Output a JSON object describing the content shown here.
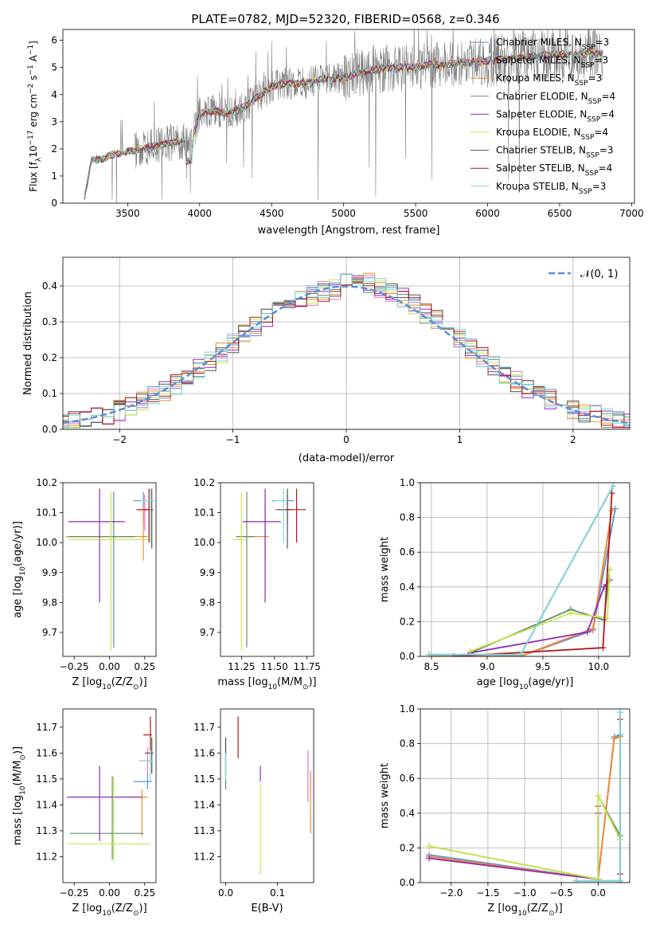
{
  "figure": {
    "title": "PLATE=0782, MJD=52320, FIBERID=0568, z=0.346"
  },
  "palette": {
    "Chabrier MILES": "#5b8fd6",
    "Salpeter MILES": "#e377c2",
    "Kroupa MILES": "#f08a2c",
    "Chabrier ELODIE": "#5e8e6e",
    "Salpeter ELODIE": "#8e2ab5",
    "Kroupa ELODIE": "#c8e64a",
    "Chabrier STELIB": "#555555",
    "Salpeter STELIB": "#b01515",
    "Kroupa STELIB": "#7fd8dc",
    "data": "#808080",
    "normal": "#5b8fd6"
  },
  "chart_data": [
    {
      "id": "spectrum",
      "type": "line",
      "xlabel": "wavelength [Angstrom, rest frame]",
      "ylabel_parts": [
        "Flux [f",
        "λ",
        "10",
        "−17",
        " erg cm",
        "−2",
        " s",
        "−1",
        " A",
        "−1",
        "]"
      ],
      "xlim": [
        3050,
        7020
      ],
      "ylim": [
        0,
        6.4
      ],
      "xticks": [
        3500,
        4000,
        4500,
        5000,
        5500,
        6000,
        6500,
        7000
      ],
      "yticks": [
        0,
        1,
        2,
        3,
        4,
        5,
        6
      ],
      "continuum": {
        "x": [
          3200,
          3250,
          3300,
          3400,
          3500,
          3600,
          3700,
          3800,
          3900,
          3950,
          4000,
          4100,
          4200,
          4300,
          4400,
          4500,
          4600,
          4700,
          4800,
          4900,
          5000,
          5100,
          5200,
          5300,
          5400,
          5500,
          5600,
          5700,
          5800,
          5900,
          6000,
          6100,
          6200,
          6300,
          6400,
          6500,
          6600,
          6700,
          6800
        ],
        "y": [
          0.2,
          1.6,
          1.6,
          1.8,
          1.9,
          2.0,
          2.1,
          2.2,
          2.3,
          2.4,
          3.3,
          3.4,
          3.3,
          3.5,
          3.9,
          4.3,
          4.4,
          4.4,
          4.5,
          4.6,
          4.6,
          4.8,
          4.9,
          5.0,
          5.0,
          5.0,
          5.1,
          5.1,
          5.15,
          5.2,
          5.25,
          5.3,
          5.35,
          5.4,
          5.45,
          5.5,
          5.5,
          5.5,
          5.5
        ]
      },
      "legend": [
        {
          "name": "Chabrier MILES, N",
          "sub": "SSP",
          "tail": "=3"
        },
        {
          "name": "Salpeter MILES, N",
          "sub": "SSP",
          "tail": "=3"
        },
        {
          "name": "Kroupa MILES, N",
          "sub": "SSP",
          "tail": "=3"
        },
        {
          "name": "Chabrier ELODIE, N",
          "sub": "SSP",
          "tail": "=4"
        },
        {
          "name": "Salpeter ELODIE, N",
          "sub": "SSP",
          "tail": "=4"
        },
        {
          "name": "Kroupa ELODIE, N",
          "sub": "SSP",
          "tail": "=4"
        },
        {
          "name": "Chabrier STELIB, N",
          "sub": "SSP",
          "tail": "=3"
        },
        {
          "name": "Salpeter STELIB, N",
          "sub": "SSP",
          "tail": "=4"
        },
        {
          "name": "Kroupa STELIB, N",
          "sub": "SSP",
          "tail": "=3"
        }
      ]
    },
    {
      "id": "residuals",
      "type": "step",
      "xlabel": "(data-model)/error",
      "ylabel": "Normed distribution",
      "xlim": [
        -2.5,
        2.5
      ],
      "ylim": [
        0,
        0.48
      ],
      "xticks": [
        -2,
        -1,
        0,
        1,
        2
      ],
      "yticks": [
        0.0,
        0.1,
        0.2,
        0.3,
        0.4
      ],
      "grid": true,
      "legend_label": "𝒩(0, 1)",
      "legend_position": "top-right"
    },
    {
      "id": "age_vs_Z",
      "type": "errorbar",
      "xlabel_parts": [
        "Z [log",
        "10",
        "(Z/Z",
        "⊙",
        ")]"
      ],
      "ylabel_parts": [
        "age  [log",
        "10",
        "(age/yr)]"
      ],
      "xlim": [
        -0.33,
        0.33
      ],
      "ylim": [
        9.62,
        10.2
      ],
      "xticks": [
        -0.25,
        0.0,
        0.25
      ],
      "yticks": [
        9.7,
        9.8,
        9.9,
        10.0,
        10.1,
        10.2
      ],
      "points": [
        {
          "model": "Chabrier MILES",
          "x": 0.24,
          "xerr": [
            0.07,
            0.07
          ],
          "y": 10.14,
          "yerr": [
            0.08,
            0.03
          ]
        },
        {
          "model": "Salpeter MILES",
          "x": 0.25,
          "xerr": [
            0.05,
            0.05
          ],
          "y": 10.11,
          "yerr": [
            0.07,
            0.05
          ]
        },
        {
          "model": "Kroupa MILES",
          "x": 0.24,
          "xerr": [
            0.55,
            0.03
          ],
          "y": 10.02,
          "yerr": [
            0.08,
            0.1
          ]
        },
        {
          "model": "Chabrier ELODIE",
          "x": 0.03,
          "xerr": [
            0.32,
            0.15
          ],
          "y": 10.02,
          "yerr": [
            0.37,
            0.15
          ]
        },
        {
          "model": "Salpeter ELODIE",
          "x": -0.07,
          "xerr": [
            0.22,
            0.18
          ],
          "y": 10.07,
          "yerr": [
            0.27,
            0.11
          ]
        },
        {
          "model": "Kroupa ELODIE",
          "x": 0.01,
          "xerr": [
            0.3,
            0.27
          ],
          "y": 10.01,
          "yerr": [
            0.37,
            0.16
          ]
        },
        {
          "model": "Chabrier STELIB",
          "x": 0.3,
          "xerr": [
            0.06,
            0.01
          ],
          "y": 10.11,
          "yerr": [
            0.13,
            0.07
          ]
        },
        {
          "model": "Salpeter STELIB",
          "x": 0.28,
          "xerr": [
            0.09,
            0.02
          ],
          "y": 10.11,
          "yerr": [
            0.11,
            0.07
          ]
        },
        {
          "model": "Kroupa STELIB",
          "x": 0.29,
          "xerr": [
            0.07,
            0.03
          ],
          "y": 10.14,
          "yerr": [
            0.14,
            0.04
          ]
        }
      ]
    },
    {
      "id": "age_vs_mass",
      "type": "errorbar",
      "xlabel_parts": [
        "mass [log",
        "10",
        "(M/M",
        "⊙",
        ")]"
      ],
      "xlim": [
        11.09,
        11.8
      ],
      "ylim": [
        9.62,
        10.2
      ],
      "xticks": [
        11.25,
        11.5,
        11.75
      ],
      "yticks": [
        9.7,
        9.8,
        9.9,
        10.0,
        10.1,
        10.2
      ],
      "points": [
        {
          "model": "Chabrier MILES",
          "x": 11.6,
          "xerr": [
            0.12,
            0.05
          ],
          "y": 10.14,
          "yerr": [
            0.08,
            0.03
          ]
        },
        {
          "model": "Salpeter MILES",
          "x": 11.6,
          "xerr": [
            0.1,
            0.04
          ],
          "y": 10.11,
          "yerr": [
            0.07,
            0.05
          ]
        },
        {
          "model": "Kroupa MILES",
          "x": 11.43,
          "xerr": [
            0.18,
            0.03
          ],
          "y": 10.02,
          "yerr": [
            0.08,
            0.1
          ]
        },
        {
          "model": "Chabrier ELODIE",
          "x": 11.29,
          "xerr": [
            0.08,
            0.06
          ],
          "y": 10.02,
          "yerr": [
            0.37,
            0.15
          ]
        },
        {
          "model": "Salpeter ELODIE",
          "x": 11.43,
          "xerr": [
            0.17,
            0.12
          ],
          "y": 10.07,
          "yerr": [
            0.27,
            0.11
          ]
        },
        {
          "model": "Kroupa ELODIE",
          "x": 11.25,
          "xerr": [
            0.07,
            0.05
          ],
          "y": 10.01,
          "yerr": [
            0.37,
            0.16
          ]
        },
        {
          "model": "Chabrier STELIB",
          "x": 11.6,
          "xerr": [
            0.08,
            0.02
          ],
          "y": 10.11,
          "yerr": [
            0.13,
            0.07
          ]
        },
        {
          "model": "Salpeter STELIB",
          "x": 11.67,
          "xerr": [
            0.08,
            0.07
          ],
          "y": 10.11,
          "yerr": [
            0.11,
            0.07
          ]
        },
        {
          "model": "Kroupa STELIB",
          "x": 11.57,
          "xerr": [
            0.07,
            0.03
          ],
          "y": 10.14,
          "yerr": [
            0.14,
            0.04
          ]
        }
      ]
    },
    {
      "id": "weight_vs_age",
      "type": "line",
      "xlabel_parts": [
        "age  [log",
        "10",
        "(age/yr)]"
      ],
      "ylabel": "mass weight",
      "xlim": [
        8.4,
        10.28
      ],
      "ylim": [
        0,
        1.0
      ],
      "xticks": [
        8.5,
        9.0,
        9.5,
        10.0
      ],
      "yticks": [
        0.0,
        0.2,
        0.4,
        0.6,
        0.8,
        1.0
      ],
      "grid": true,
      "series": [
        {
          "model": "Chabrier MILES",
          "x": [
            8.5,
            9.3,
            9.95,
            10.15
          ],
          "y": [
            0.0,
            0.0,
            0.15,
            0.85
          ]
        },
        {
          "model": "Salpeter MILES",
          "x": [
            8.5,
            9.3,
            9.95,
            10.12
          ],
          "y": [
            0.0,
            0.0,
            0.16,
            0.84
          ]
        },
        {
          "model": "Kroupa MILES",
          "x": [
            8.5,
            9.3,
            9.95,
            10.12
          ],
          "y": [
            0.0,
            0.0,
            0.16,
            0.84
          ]
        },
        {
          "model": "Chabrier ELODIE",
          "x": [
            8.85,
            9.75,
            10.05,
            10.1
          ],
          "y": [
            0.02,
            0.27,
            0.21,
            0.5
          ]
        },
        {
          "model": "Salpeter ELODIE",
          "x": [
            8.85,
            9.9,
            10.05,
            10.1
          ],
          "y": [
            0.02,
            0.14,
            0.4,
            0.44
          ]
        },
        {
          "model": "Kroupa ELODIE",
          "x": [
            8.85,
            9.75,
            10.08,
            10.1
          ],
          "y": [
            0.03,
            0.25,
            0.22,
            0.5
          ]
        },
        {
          "model": "Chabrier STELIB",
          "x": [
            8.48,
            9.3,
            10.13
          ],
          "y": [
            0.01,
            0.01,
            0.98
          ]
        },
        {
          "model": "Salpeter STELIB",
          "x": [
            8.7,
            10.04,
            10.12
          ],
          "y": [
            0.0,
            0.05,
            0.94
          ]
        },
        {
          "model": "Kroupa STELIB",
          "x": [
            8.48,
            9.3,
            10.13
          ],
          "y": [
            0.01,
            0.01,
            0.98
          ]
        }
      ]
    },
    {
      "id": "mass_vs_Z",
      "type": "errorbar",
      "xlabel_parts": [
        "Z [log",
        "10",
        "(Z/Z",
        "⊙",
        ")]"
      ],
      "ylabel_parts": [
        "mass [log",
        "10",
        "(M/M",
        "⊙",
        ")]"
      ],
      "xlim": [
        -0.33,
        0.33
      ],
      "ylim": [
        11.1,
        11.77
      ],
      "xticks": [
        -0.25,
        0.0,
        0.25
      ],
      "yticks": [
        11.2,
        11.3,
        11.4,
        11.5,
        11.6,
        11.7
      ],
      "points": [
        {
          "model": "Chabrier MILES",
          "x": 0.27,
          "xerr": [
            0.1,
            0.03
          ],
          "y": 11.49,
          "yerr": [
            0.03,
            0.03
          ]
        },
        {
          "model": "Salpeter MILES",
          "x": 0.27,
          "xerr": [
            0.06,
            0.03
          ],
          "y": 11.57,
          "yerr": [
            0.05,
            0.05
          ]
        },
        {
          "model": "Kroupa MILES",
          "x": 0.23,
          "xerr": [
            0.11,
            0.04
          ],
          "y": 11.43,
          "yerr": [
            0.15,
            0.03
          ]
        },
        {
          "model": "Chabrier ELODIE",
          "x": 0.02,
          "xerr": [
            0.3,
            0.22
          ],
          "y": 11.29,
          "yerr": [
            0.1,
            0.22
          ]
        },
        {
          "model": "Salpeter ELODIE",
          "x": -0.07,
          "xerr": [
            0.23,
            0.3
          ],
          "y": 11.43,
          "yerr": [
            0.17,
            0.12
          ]
        },
        {
          "model": "Kroupa ELODIE",
          "x": 0.03,
          "xerr": [
            0.33,
            0.26
          ],
          "y": 11.25,
          "yerr": [
            0.07,
            0.26
          ]
        },
        {
          "model": "Chabrier STELIB",
          "x": 0.3,
          "xerr": [
            0.05,
            0.01
          ],
          "y": 11.6,
          "yerr": [
            0.08,
            0.06
          ]
        },
        {
          "model": "Salpeter STELIB",
          "x": 0.29,
          "xerr": [
            0.05,
            0.01
          ],
          "y": 11.67,
          "yerr": [
            0.08,
            0.07
          ]
        },
        {
          "model": "Kroupa STELIB",
          "x": 0.29,
          "xerr": [
            0.06,
            0.02
          ],
          "y": 11.57,
          "yerr": [
            0.08,
            0.04
          ]
        }
      ]
    },
    {
      "id": "mass_vs_ebv",
      "type": "errorbar",
      "xlabel": "E(B-V)",
      "xlim": [
        -0.01,
        0.17
      ],
      "ylim": [
        11.1,
        11.77
      ],
      "xticks": [
        0.0,
        0.1
      ],
      "yticks": [
        11.2,
        11.3,
        11.4,
        11.5,
        11.6,
        11.7
      ],
      "points": [
        {
          "model": "Chabrier MILES",
          "x": 0.164,
          "y": 11.49,
          "yerr": [
            0.03,
            0.04
          ]
        },
        {
          "model": "Salpeter MILES",
          "x": 0.159,
          "y": 11.51,
          "yerr": [
            0.1,
            0.1
          ]
        },
        {
          "model": "Kroupa MILES",
          "x": 0.164,
          "y": 11.37,
          "yerr": [
            0.08,
            0.16
          ]
        },
        {
          "model": "Chabrier ELODIE",
          "x": 0.0,
          "y": 11.56,
          "yerr": [
            0.1,
            0.1
          ]
        },
        {
          "model": "Salpeter ELODIE",
          "x": 0.067,
          "y": 11.52,
          "yerr": [
            0.03,
            0.03
          ]
        },
        {
          "model": "Kroupa ELODIE",
          "x": 0.067,
          "y": 11.3,
          "yerr": [
            0.17,
            0.18
          ]
        },
        {
          "model": "Chabrier STELIB",
          "x": 0.0,
          "y": 11.59,
          "yerr": [
            0.07,
            0.07
          ]
        },
        {
          "model": "Salpeter STELIB",
          "x": 0.024,
          "y": 11.66,
          "yerr": [
            0.08,
            0.08
          ]
        },
        {
          "model": "Kroupa STELIB",
          "x": 0.0,
          "y": 11.55,
          "yerr": [
            0.05,
            0.05
          ]
        }
      ]
    },
    {
      "id": "weight_vs_Z",
      "type": "line",
      "xlabel_parts": [
        "Z [log",
        "10",
        "(Z/Z",
        "⊙",
        ")]"
      ],
      "ylabel": "mass weight",
      "xlim": [
        -2.42,
        0.43
      ],
      "ylim": [
        0,
        1.0
      ],
      "xticks": [
        -2.0,
        -1.5,
        -1.0,
        -0.5,
        0.0
      ],
      "yticks": [
        0.0,
        0.2,
        0.4,
        0.6,
        0.8,
        1.0
      ],
      "grid": true,
      "series": [
        {
          "model": "Chabrier MILES",
          "x": [
            -2.3,
            0.0,
            0.22,
            0.3
          ],
          "y": [
            0.16,
            0.02,
            0.84,
            0.85
          ]
        },
        {
          "model": "Salpeter MILES",
          "x": [
            -2.3,
            0.0,
            0.22,
            0.3
          ],
          "y": [
            0.15,
            0.02,
            0.83,
            0.84
          ]
        },
        {
          "model": "Kroupa MILES",
          "x": [
            -2.3,
            0.0,
            0.22,
            0.3
          ],
          "y": [
            0.15,
            0.02,
            0.83,
            0.84
          ]
        },
        {
          "model": "Chabrier ELODIE",
          "x": [
            -2.3,
            0.0,
            0.0,
            0.3
          ],
          "y": [
            0.21,
            0.02,
            0.5,
            0.27
          ]
        },
        {
          "model": "Salpeter ELODIE",
          "x": [
            -2.3,
            0.0,
            0.0,
            0.0
          ],
          "y": [
            0.14,
            0.02,
            0.44,
            0.4
          ]
        },
        {
          "model": "Kroupa ELODIE",
          "x": [
            -2.3,
            0.0,
            0.0,
            0.3
          ],
          "y": [
            0.21,
            0.02,
            0.5,
            0.25
          ]
        },
        {
          "model": "Chabrier STELIB",
          "x": [
            -0.3,
            0.3,
            0.3
          ],
          "y": [
            0.01,
            0.01,
            0.98
          ]
        },
        {
          "model": "Salpeter STELIB",
          "x": [
            0.3,
            0.3,
            0.3
          ],
          "y": [
            0.05,
            0.94,
            0.0
          ]
        },
        {
          "model": "Kroupa STELIB",
          "x": [
            -0.3,
            0.3,
            0.3
          ],
          "y": [
            0.01,
            0.01,
            0.98
          ]
        }
      ]
    }
  ]
}
